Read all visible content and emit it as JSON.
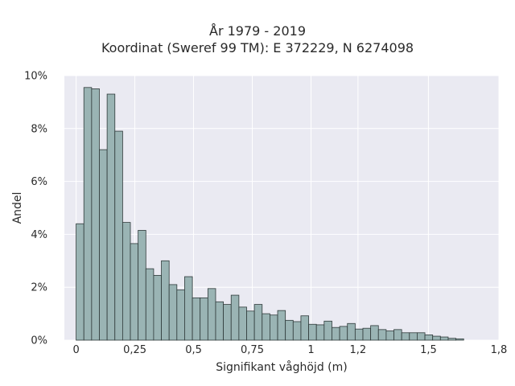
{
  "title_line1": "År 1979 - 2019",
  "title_line2": "Koordinat (Sweref 99 TM): E 372229, N 6274098",
  "chart_data": {
    "type": "bar",
    "xlabel": "Signifikant våghöjd (m)",
    "ylabel": "Andel",
    "xlim": [
      -0.05,
      1.8
    ],
    "ylim": [
      0,
      10
    ],
    "xticks": [
      {
        "value": 0,
        "label": "0"
      },
      {
        "value": 0.25,
        "label": "0,25"
      },
      {
        "value": 0.5,
        "label": "0,5"
      },
      {
        "value": 0.75,
        "label": "0,75"
      },
      {
        "value": 1,
        "label": "1"
      },
      {
        "value": 1.2,
        "label": "1,2"
      },
      {
        "value": 1.5,
        "label": "1,5"
      },
      {
        "value": 1.8,
        "label": "1,8"
      }
    ],
    "yticks": [
      {
        "value": 0,
        "label": "0%"
      },
      {
        "value": 2,
        "label": "2%"
      },
      {
        "value": 4,
        "label": "4%"
      },
      {
        "value": 6,
        "label": "6%"
      },
      {
        "value": 8,
        "label": "8%"
      },
      {
        "value": 10,
        "label": "10%"
      }
    ],
    "bin_start": 0.0,
    "bin_width": 0.033,
    "values": [
      4.4,
      9.55,
      9.5,
      7.2,
      9.3,
      7.9,
      4.45,
      3.65,
      4.15,
      2.7,
      2.45,
      3.0,
      2.1,
      1.9,
      2.4,
      1.6,
      1.6,
      1.95,
      1.45,
      1.35,
      1.7,
      1.25,
      1.1,
      1.35,
      1.0,
      0.95,
      1.12,
      0.75,
      0.7,
      0.92,
      0.6,
      0.58,
      0.72,
      0.48,
      0.52,
      0.63,
      0.42,
      0.45,
      0.55,
      0.4,
      0.35,
      0.4,
      0.28,
      0.28,
      0.28,
      0.2,
      0.15,
      0.12,
      0.07,
      0.05
    ],
    "grid": true,
    "bar_color": "#9ab4b4",
    "bar_edge_color": "#2f3a3a",
    "background_color": "#eaeaf2"
  }
}
